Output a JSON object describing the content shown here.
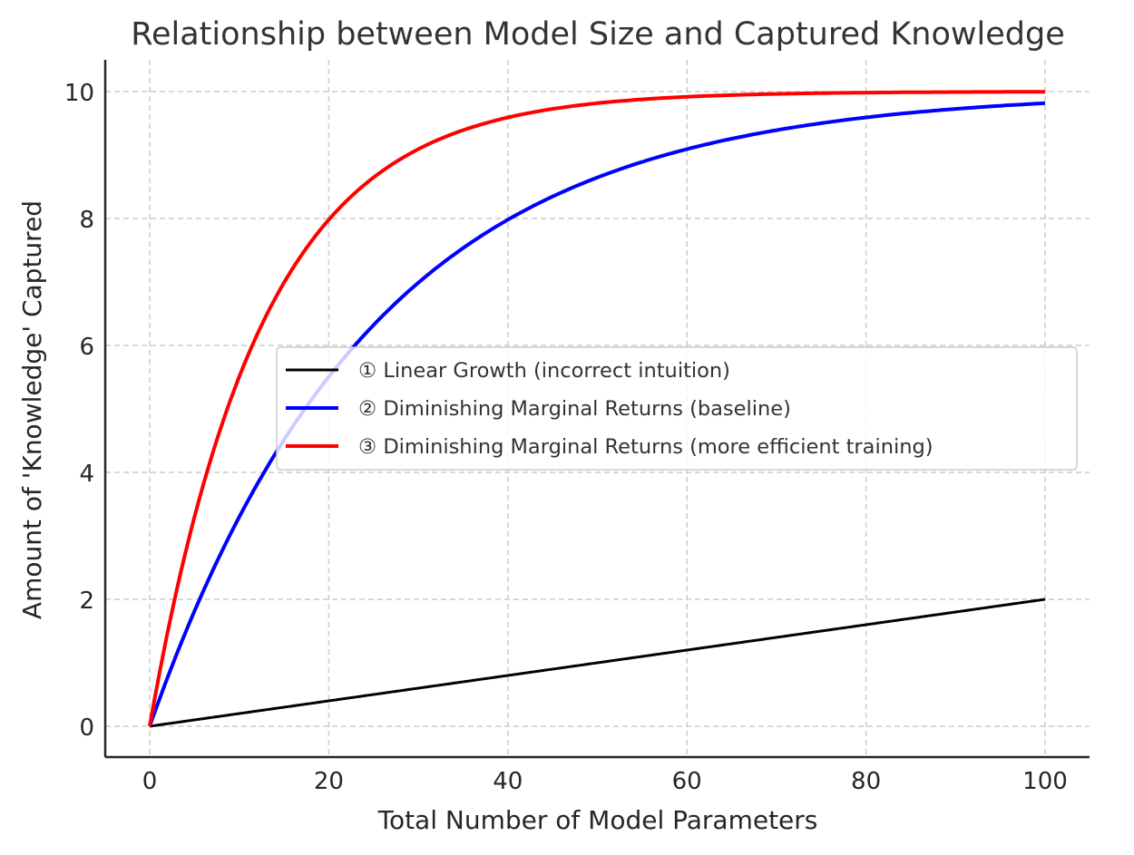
{
  "chart_data": {
    "type": "line",
    "title": "Relationship between Model Size and Captured Knowledge",
    "xlabel": "Total Number of Model Parameters",
    "ylabel": "Amount of 'Knowledge' Captured",
    "xlim": [
      -5,
      105
    ],
    "ylim": [
      -0.5,
      10.5
    ],
    "xticks": [
      0,
      20,
      40,
      60,
      80,
      100
    ],
    "yticks": [
      0,
      2,
      4,
      6,
      8,
      10
    ],
    "grid": true,
    "legend_position": "center right",
    "x": [
      0,
      5,
      10,
      15,
      20,
      25,
      30,
      35,
      40,
      45,
      50,
      55,
      60,
      65,
      70,
      75,
      80,
      85,
      90,
      95,
      100
    ],
    "series": [
      {
        "name": "① Linear Growth (incorrect intuition)",
        "color": "#000000",
        "formula": "0.02*x",
        "values": [
          0,
          0.1,
          0.2,
          0.3,
          0.4,
          0.5,
          0.6,
          0.7,
          0.8,
          0.9,
          1.0,
          1.1,
          1.2,
          1.3,
          1.4,
          1.5,
          1.6,
          1.7,
          1.8,
          1.9,
          2.0
        ]
      },
      {
        "name": "② Diminishing Marginal Returns (baseline)",
        "color": "#0000ff",
        "formula": "10*(1-exp(-0.04*x))",
        "values": [
          0,
          1.81,
          3.3,
          4.51,
          5.51,
          6.32,
          6.99,
          7.53,
          7.98,
          8.35,
          8.65,
          8.89,
          9.09,
          9.26,
          9.39,
          9.5,
          9.59,
          9.67,
          9.73,
          9.78,
          9.82
        ]
      },
      {
        "name": "③ Diminishing Marginal Returns (more efficient training)",
        "color": "#ff0000",
        "formula": "10*(1-exp(-0.08*x))",
        "values": [
          0,
          3.3,
          5.51,
          6.99,
          7.98,
          8.65,
          9.09,
          9.39,
          9.59,
          9.73,
          9.82,
          9.88,
          9.92,
          9.94,
          9.96,
          9.98,
          9.98,
          9.99,
          9.99,
          9.99,
          10.0
        ]
      }
    ]
  },
  "colors": {
    "grid": "#cccccc",
    "axis": "#262626",
    "legend_border": "#cccccc"
  }
}
